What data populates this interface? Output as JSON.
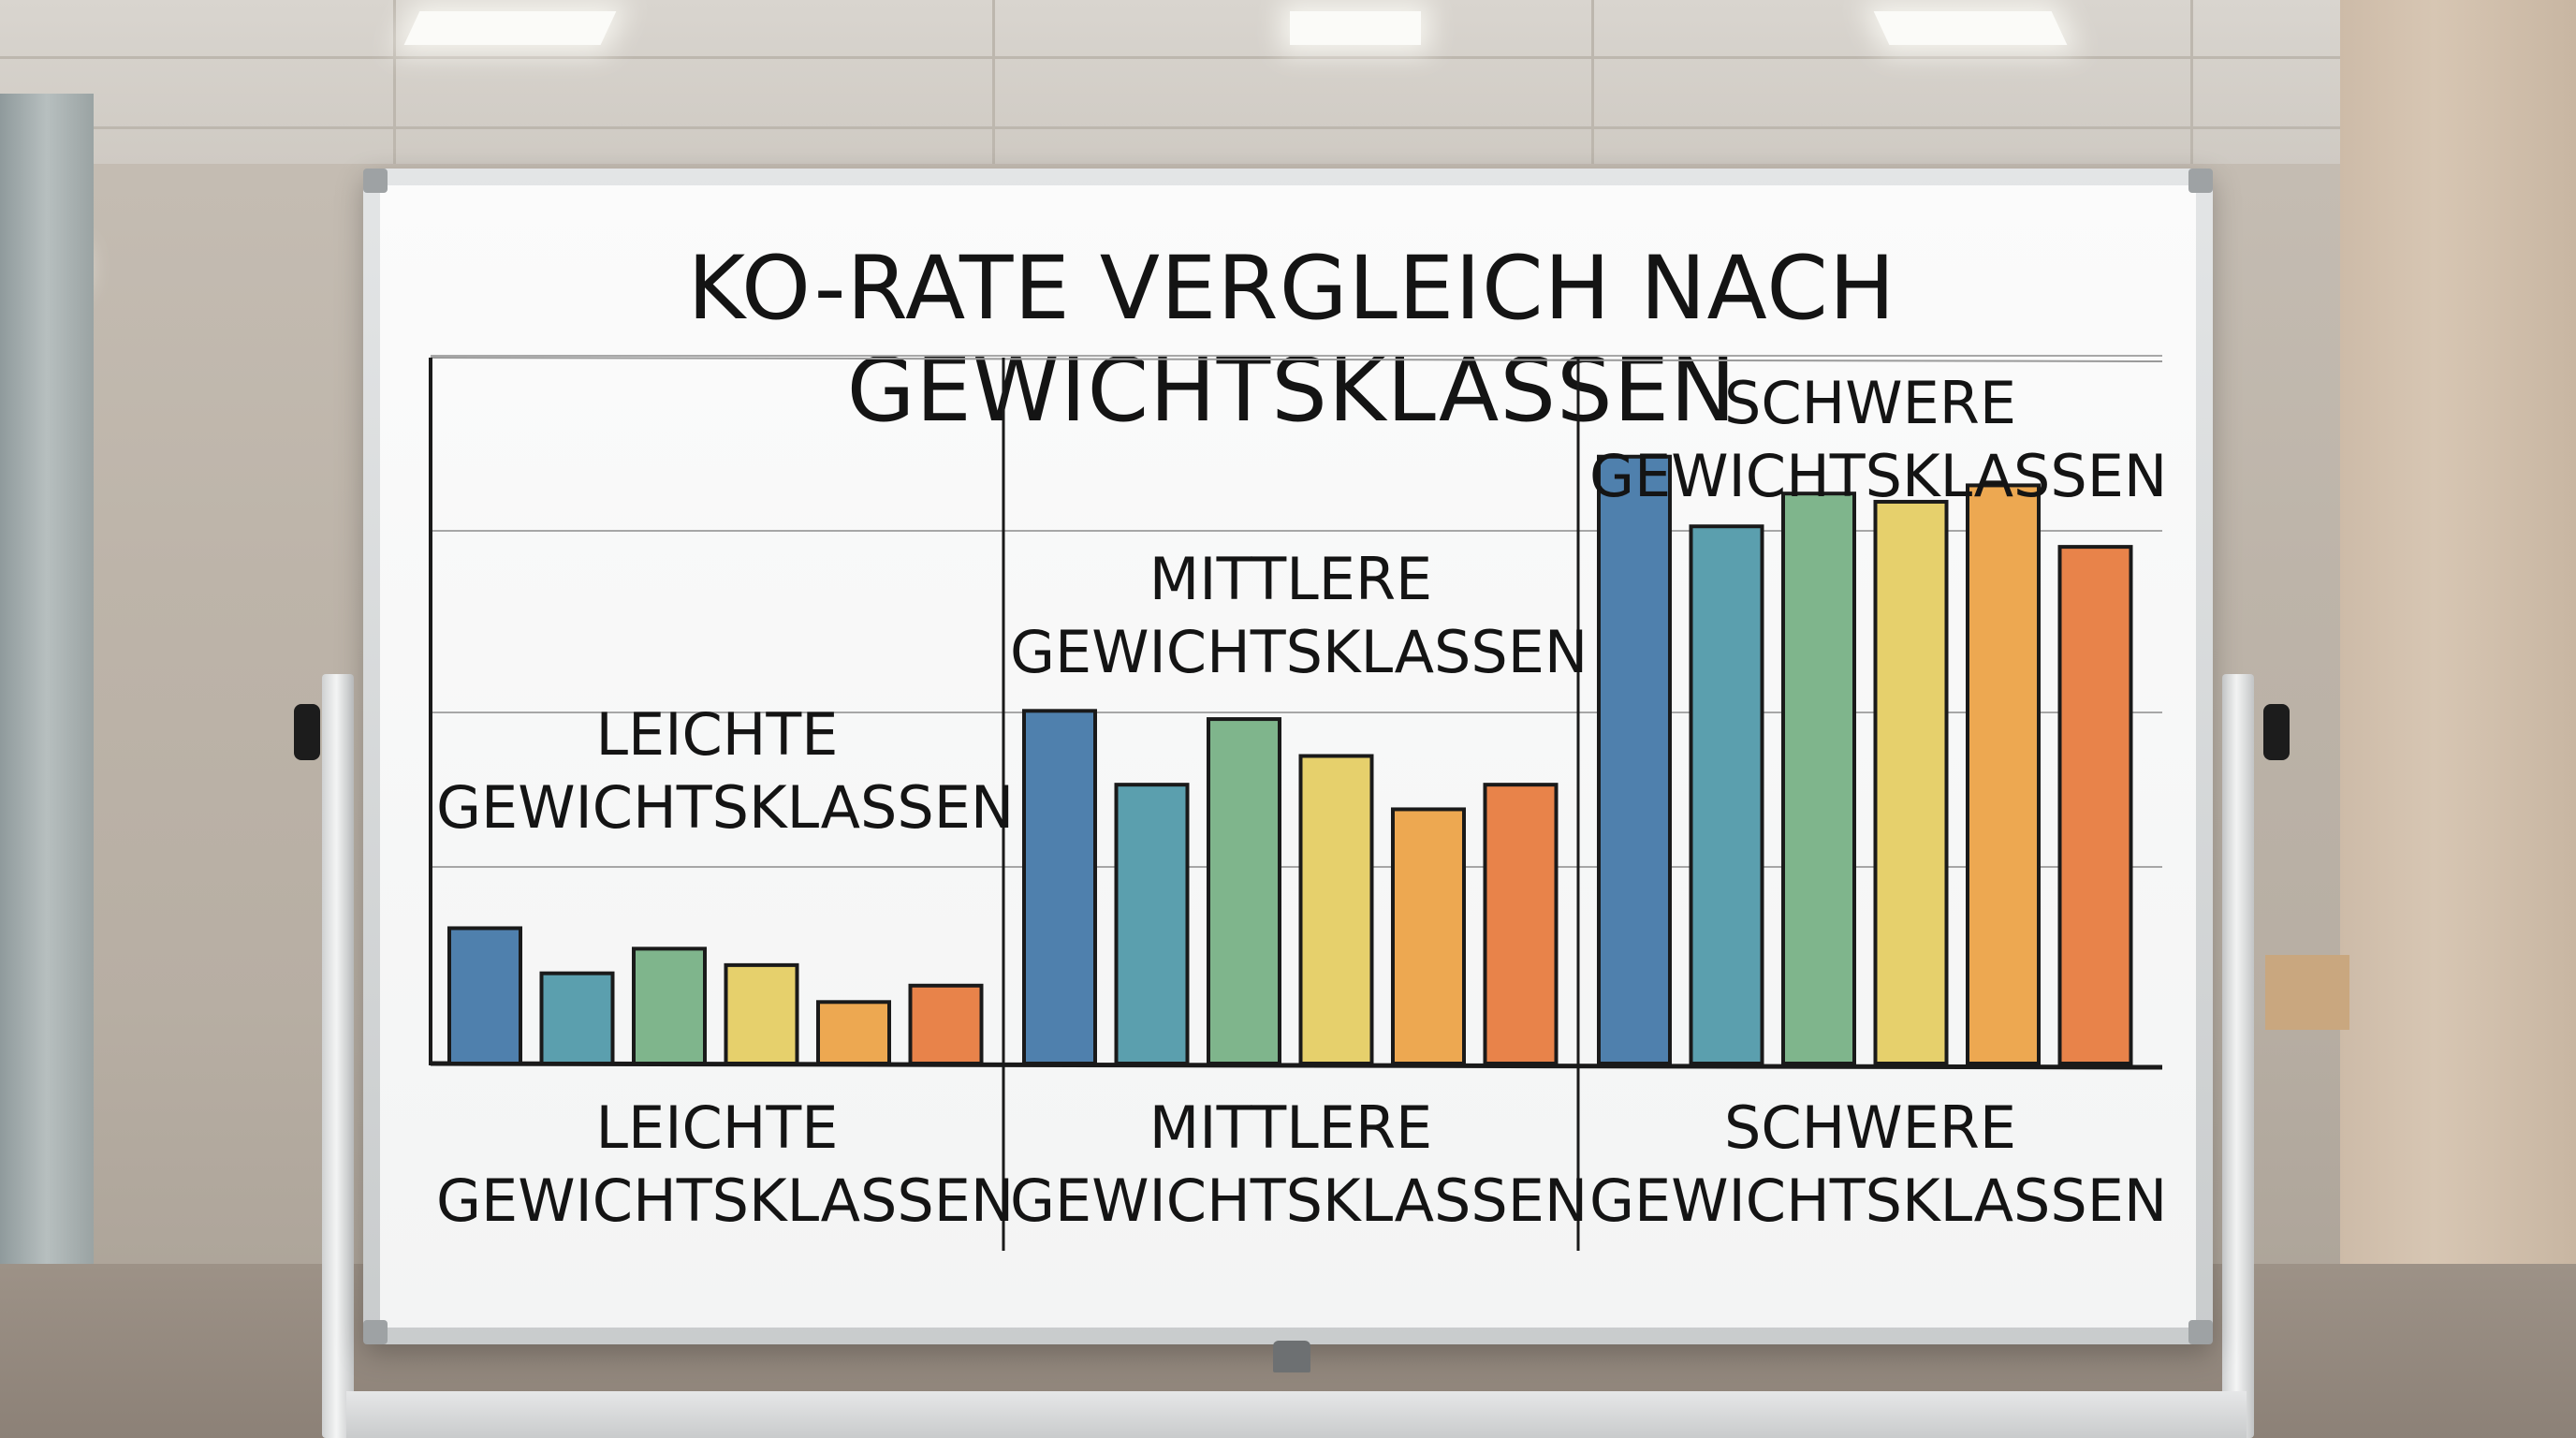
{
  "chart_data": {
    "type": "bar",
    "title": "KO-RATE VERGLEICH NACH GEWICHTSKLASSEN",
    "xlabel": "",
    "ylabel": "",
    "ylim": [
      0,
      100
    ],
    "grid": true,
    "legend": "none",
    "groups": [
      {
        "label": "LEICHTE GEWICHTSKLASSEN",
        "annotation": "LEICHTE GEWICHTSKLASSEN",
        "values": [
          16.5,
          11,
          14,
          12,
          7.5,
          9.5
        ]
      },
      {
        "label": "MITTLERE GEWICHTSKLASSEN",
        "annotation": "MITTLERE GEWICHTSKLASSEN",
        "values": [
          43,
          34,
          42,
          37.5,
          31,
          34
        ]
      },
      {
        "label": "SCHWERE GEWICHTSKLASSEN",
        "annotation": "SCHWERE GEWICHTSKLASSEN",
        "values": [
          74,
          65.5,
          69.5,
          68.5,
          70.5,
          63
        ]
      }
    ],
    "bar_colors": [
      "#4f80ad",
      "#5b9fae",
      "#7fb58c",
      "#e6d06c",
      "#eda851",
      "#e8834a"
    ]
  }
}
